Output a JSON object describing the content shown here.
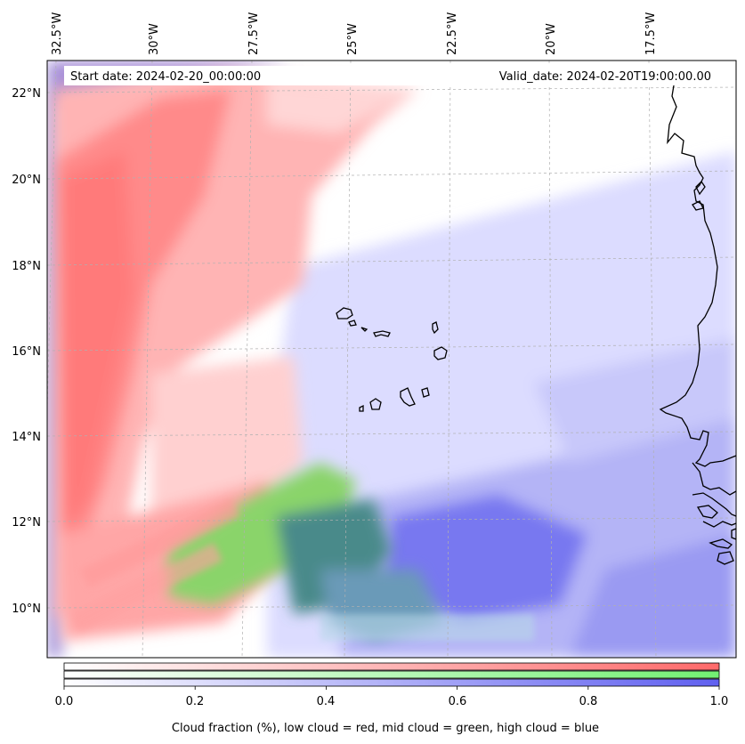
{
  "map": {
    "start_date_label": "Start date: 2024-02-20_00:00:00",
    "valid_date_label": "Valid_date: 2024-02-20T19:00:00.00",
    "lon_labels": [
      "32.5°W",
      "30°W",
      "27.5°W",
      "25°W",
      "22.5°W",
      "20°W",
      "17.5°W"
    ],
    "lat_labels": [
      "22°N",
      "20°N",
      "18°N",
      "16°N",
      "14°N",
      "12°N",
      "10°N"
    ],
    "colors": {
      "low_cloud": "#ff7a7a",
      "mid_cloud": "#7ddc6a",
      "high_cloud": "#6a6af0",
      "coastline": "#000000",
      "gridline": "#b0b0b0"
    }
  },
  "colorbar": {
    "ticks": [
      "0.0",
      "0.2",
      "0.4",
      "0.6",
      "0.8",
      "1.0"
    ],
    "label": "Cloud fraction (%), low cloud = red, mid cloud = green, high cloud = blue",
    "bands": [
      {
        "name": "low cloud",
        "color": "#ff6a6a"
      },
      {
        "name": "mid cloud",
        "color": "#72f072"
      },
      {
        "name": "high cloud",
        "color": "#6060f0"
      }
    ]
  }
}
